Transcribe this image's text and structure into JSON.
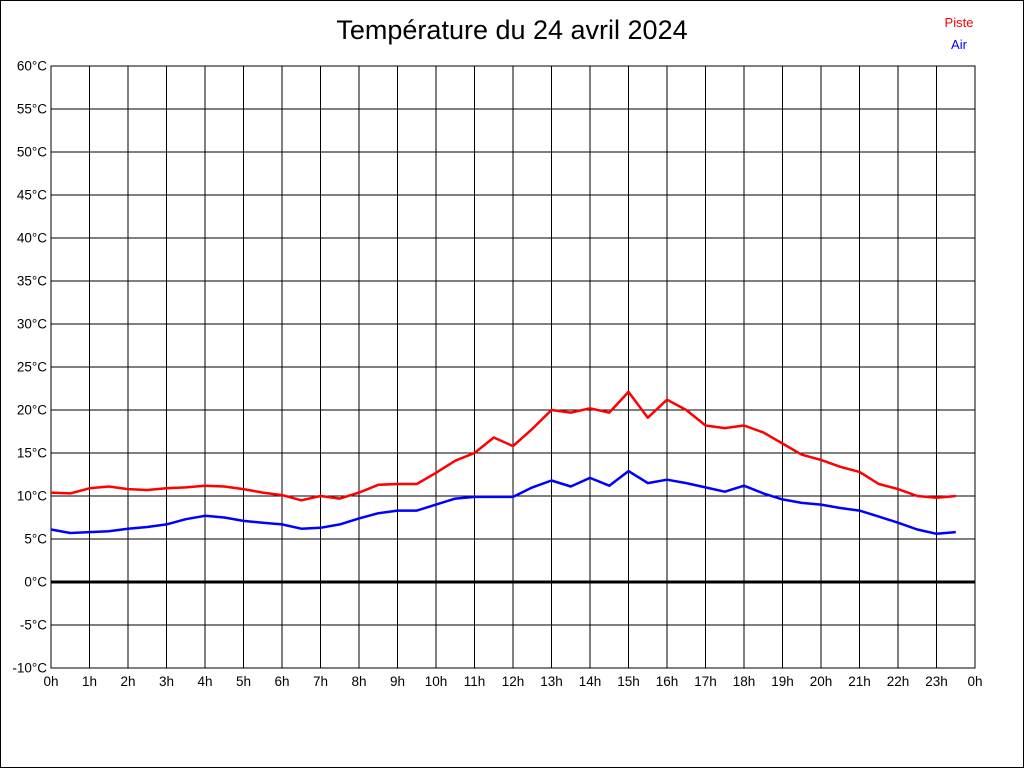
{
  "window": {
    "title": "Température du 24 avril 2024"
  },
  "chart_data": {
    "type": "line",
    "title": "Température du 24 avril 2024",
    "xlabel": "",
    "ylabel": "",
    "x_unit": "hours",
    "y_unit": "°C",
    "xlim": [
      0,
      24
    ],
    "ylim": [
      -10,
      60
    ],
    "y_tick_step": 5,
    "grid": true,
    "zero_line_emphasized": true,
    "legend_position": "top-right",
    "x_tick_labels": [
      "0h",
      "1h",
      "2h",
      "3h",
      "4h",
      "5h",
      "6h",
      "7h",
      "8h",
      "9h",
      "10h",
      "11h",
      "12h",
      "13h",
      "14h",
      "15h",
      "16h",
      "17h",
      "18h",
      "19h",
      "20h",
      "21h",
      "22h",
      "23h",
      "0h"
    ],
    "y_tick_labels": [
      "60°C",
      "55°C",
      "50°C",
      "45°C",
      "40°C",
      "35°C",
      "30°C",
      "25°C",
      "20°C",
      "15°C",
      "10°C",
      "5°C",
      "0°C",
      "-5°C",
      "-10°C"
    ],
    "x": [
      0,
      0.5,
      1,
      1.5,
      2,
      2.5,
      3,
      3.5,
      4,
      4.5,
      5,
      5.5,
      6,
      6.5,
      7,
      7.5,
      8,
      8.5,
      9,
      9.5,
      10,
      10.5,
      11,
      11.5,
      12,
      12.5,
      13,
      13.5,
      14,
      14.5,
      15,
      15.5,
      16,
      16.5,
      17,
      17.5,
      18,
      18.5,
      19,
      19.5,
      20,
      20.5,
      21,
      21.5,
      22,
      22.5,
      23,
      23.5
    ],
    "series": [
      {
        "name": "Piste",
        "color": "#ff0000",
        "values": [
          10.4,
          10.3,
          10.9,
          11.1,
          10.8,
          10.7,
          10.9,
          11.0,
          11.2,
          11.1,
          10.8,
          10.4,
          10.1,
          9.5,
          10.0,
          9.7,
          10.4,
          11.3,
          11.4,
          11.4,
          12.7,
          14.1,
          15.0,
          16.8,
          15.8,
          17.8,
          20.0,
          19.7,
          20.2,
          19.7,
          22.1,
          19.1,
          21.2,
          20.0,
          18.2,
          17.9,
          18.2,
          17.4,
          16.1,
          14.8,
          14.2,
          13.4,
          12.8,
          11.4,
          10.8,
          10.0,
          9.8,
          10.0
        ]
      },
      {
        "name": "Air",
        "color": "#0000ff",
        "values": [
          6.1,
          5.7,
          5.8,
          5.9,
          6.2,
          6.4,
          6.7,
          7.3,
          7.7,
          7.5,
          7.1,
          6.9,
          6.7,
          6.2,
          6.3,
          6.7,
          7.4,
          8.0,
          8.3,
          8.3,
          9.0,
          9.7,
          9.9,
          9.9,
          9.9,
          11.0,
          11.8,
          11.1,
          12.1,
          11.2,
          12.9,
          11.5,
          11.9,
          11.5,
          11.0,
          10.5,
          11.2,
          10.3,
          9.6,
          9.2,
          9.0,
          8.6,
          8.3,
          7.6,
          6.9,
          6.1,
          5.6,
          5.8
        ]
      }
    ]
  }
}
